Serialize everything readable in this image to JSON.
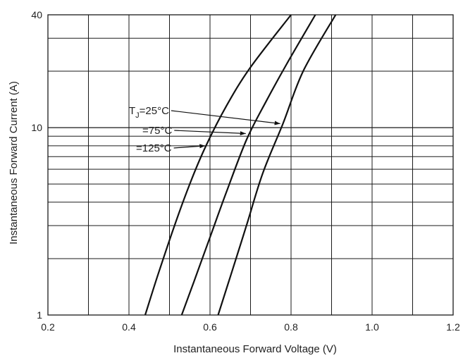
{
  "chart_data": {
    "type": "line",
    "xlabel": "Instantaneous Forward Voltage (V)",
    "ylabel": "Instantaneous Forward Current (A)",
    "xlim": [
      0.2,
      1.2
    ],
    "ylim": [
      1,
      40
    ],
    "yscale": "log",
    "grid": true,
    "x_tick_labels": [
      "0.2",
      "0.4",
      "0.6",
      "0.8",
      "1.0",
      "1.2"
    ],
    "y_tick_labels": [
      "1",
      "10",
      "40"
    ],
    "annotations": [
      {
        "prefix": "T",
        "sub": "J",
        "text": "=25°C",
        "target": {
          "x": 0.775,
          "y": 10.5
        }
      },
      {
        "text": "=75°C",
        "target": {
          "x": 0.69,
          "y": 9.3
        }
      },
      {
        "text": "=125°C",
        "target": {
          "x": 0.59,
          "y": 8.0
        }
      }
    ],
    "series": [
      {
        "x": [
          0.44,
          0.47,
          0.51,
          0.55,
          0.59,
          0.64,
          0.7,
          0.8
        ],
        "y": [
          1,
          1.6,
          2.9,
          5.0,
          8.0,
          13.0,
          21.0,
          40.0
        ]
      },
      {
        "x": [
          0.53,
          0.56,
          0.6,
          0.64,
          0.69,
          0.74,
          0.79,
          0.86
        ],
        "y": [
          1,
          1.5,
          2.6,
          4.5,
          8.6,
          14.0,
          22.0,
          40.0
        ]
      },
      {
        "x": [
          0.62,
          0.65,
          0.69,
          0.73,
          0.78,
          0.83,
          0.91
        ],
        "y": [
          1,
          1.6,
          3.0,
          5.7,
          10.5,
          20.0,
          40.0
        ]
      }
    ],
    "colors": {
      "grid": "#1a1a1a",
      "line": "#111111",
      "text": "#222222"
    }
  }
}
